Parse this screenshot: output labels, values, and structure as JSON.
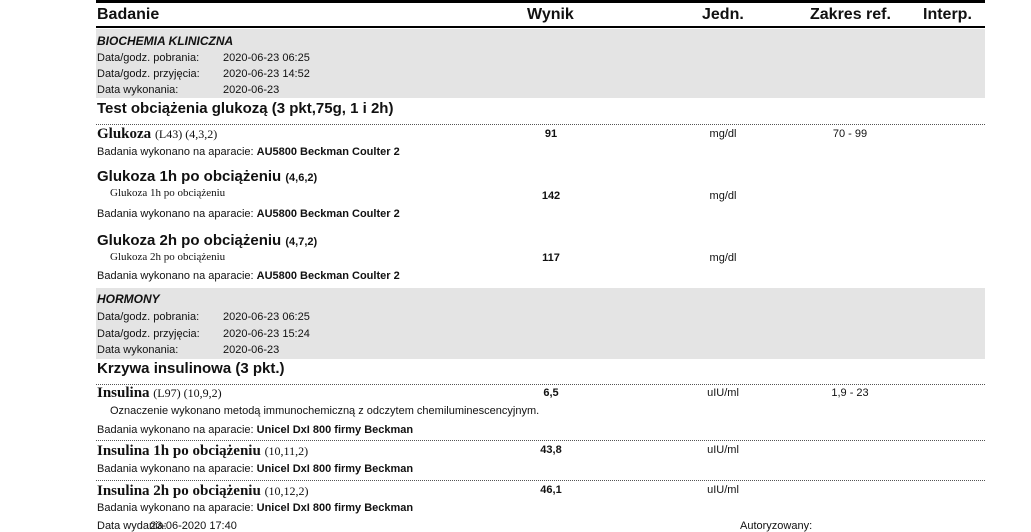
{
  "header": {
    "col_test": "Badanie",
    "col_result": "Wynik",
    "col_unit": "Jedn.",
    "col_ref": "Zakres ref.",
    "col_interp": "Interp."
  },
  "sections": [
    {
      "title": "BIOCHEMIA KLINICZNA",
      "collected_label": "Data/godz. pobrania:",
      "collected": "2020-06-23 06:25",
      "received_label": "Data/godz. przyjęcia:",
      "received": "2020-06-23 14:52",
      "performed_label": "Data wykonania:",
      "performed": "2020-06-23",
      "group": "Test obciążenia glukozą (3 pkt,75g, 1 i 2h)",
      "tests": [
        {
          "name": "Glukoza",
          "code": "(L43) (4,3,2)",
          "result": "91",
          "unit": "mg/dl",
          "ref": "70 - 99",
          "device_label": "Badania wykonano na aparacie:",
          "device": "AU5800 Beckman Coulter 2"
        },
        {
          "name": "Glukoza 1h po obciążeniu",
          "code": "(4,6,2)",
          "sub": "Glukoza 1h po obciążeniu",
          "result": "142",
          "unit": "mg/dl",
          "device_label": "Badania wykonano na aparacie:",
          "device": "AU5800 Beckman Coulter 2"
        },
        {
          "name": "Glukoza 2h po obciążeniu",
          "code": "(4,7,2)",
          "sub": "Glukoza 2h po obciążeniu",
          "result": "117",
          "unit": "mg/dl",
          "device_label": "Badania wykonano na aparacie:",
          "device": "AU5800 Beckman Coulter 2"
        }
      ]
    },
    {
      "title": "HORMONY",
      "collected_label": "Data/godz. pobrania:",
      "collected": "2020-06-23 06:25",
      "received_label": "Data/godz. przyjęcia:",
      "received": "2020-06-23 15:24",
      "performed_label": "Data wykonania:",
      "performed": "2020-06-23",
      "group": "Krzywa insulinowa (3 pkt.)",
      "tests": [
        {
          "name": "Insulina",
          "code": "(L97) (10,9,2)",
          "result": "6,5",
          "unit": "uIU/ml",
          "ref": "1,9 - 23",
          "note": "Oznaczenie wykonano metodą immunochemiczną z odczytem chemiluminescencyjnym.",
          "device_label": "Badania wykonano na aparacie:",
          "device": "Unicel DxI 800 firmy Beckman"
        },
        {
          "name": "Insulina 1h po obciążeniu",
          "code": "(10,11,2)",
          "result": "43,8",
          "unit": "uIU/ml",
          "device_label": "Badania wykonano na aparacie:",
          "device": "Unicel DxI 800 firmy Beckman"
        },
        {
          "name": "Insulina 2h po obciążeniu",
          "code": "(10,12,2)",
          "result": "46,1",
          "unit": "uIU/ml",
          "device_label": "Badania wykonano na aparacie:",
          "device": "Unicel DxI 800 firmy Beckman"
        }
      ]
    }
  ],
  "footer": {
    "issued_label": "Data wydania:",
    "issued": "23-06-2020 17:40",
    "authorized_label": "Autoryzowany:"
  }
}
